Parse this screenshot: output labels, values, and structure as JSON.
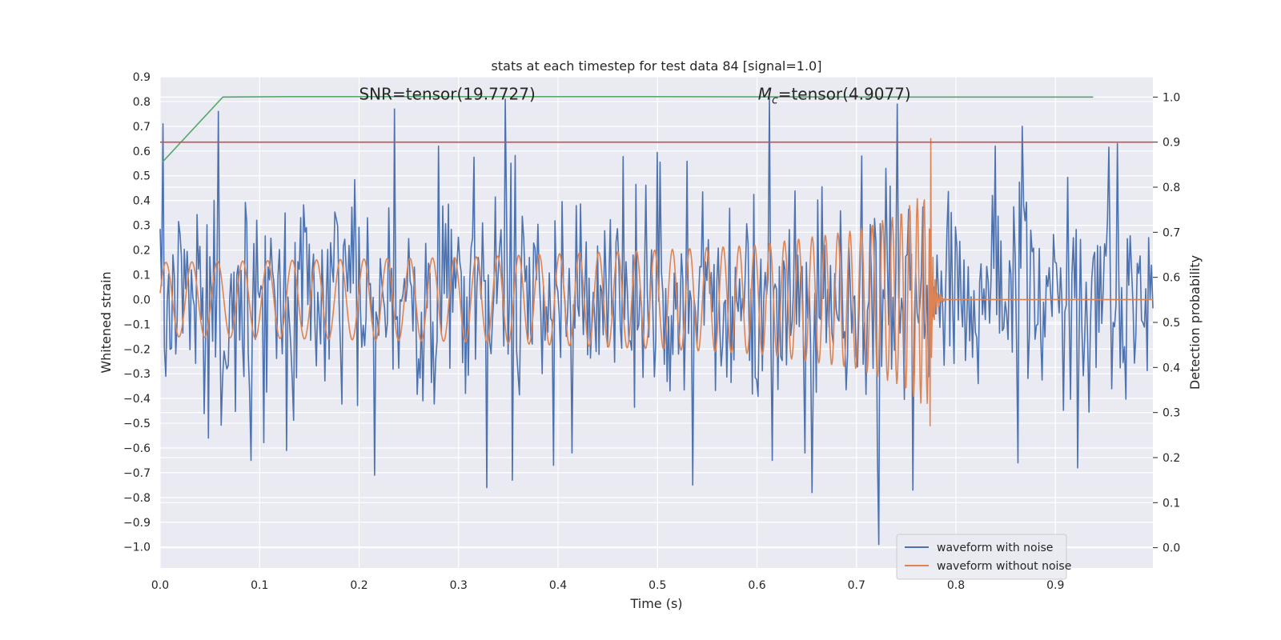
{
  "chart_data": {
    "type": "line",
    "title": "stats at each timestep for test data 84 [signal=1.0]",
    "xlabel": "Time (s)",
    "ylabel": "Whitened strain",
    "ylabel_right": "Detection probability",
    "xlim": [
      0.0,
      0.998
    ],
    "ylim": [
      -1.085,
      0.9
    ],
    "ylim_right": [
      -0.045,
      1.045
    ],
    "x_ticks": [
      0.0,
      0.1,
      0.2,
      0.3,
      0.4,
      0.5,
      0.6,
      0.7,
      0.8,
      0.9
    ],
    "x_tick_labels": [
      "0.0",
      "0.1",
      "0.2",
      "0.3",
      "0.4",
      "0.5",
      "0.6",
      "0.7",
      "0.8",
      "0.9"
    ],
    "y_ticks": [
      0.9,
      0.8,
      0.7,
      0.6,
      0.5,
      0.4,
      0.3,
      0.2,
      0.1,
      0.0,
      -0.1,
      -0.2,
      -0.3,
      -0.4,
      -0.5,
      -0.6,
      -0.7,
      -0.8,
      -0.9,
      -1.0
    ],
    "y_tick_labels": [
      "0.9",
      "0.8",
      "0.7",
      "0.6",
      "0.5",
      "0.4",
      "0.3",
      "0.2",
      "0.1",
      "0.0",
      "−0.1",
      "−0.2",
      "−0.3",
      "−0.4",
      "−0.5",
      "−0.6",
      "−0.7",
      "−0.8",
      "−0.9",
      "−1.0"
    ],
    "y2_ticks": [
      1.0,
      0.9,
      0.8,
      0.7,
      0.6,
      0.5,
      0.4,
      0.3,
      0.2,
      0.1,
      0.0
    ],
    "y2_tick_labels": [
      "1.0",
      "0.9",
      "0.8",
      "0.7",
      "0.6",
      "0.5",
      "0.4",
      "0.3",
      "0.2",
      "0.1",
      "0.0"
    ],
    "annotations": [
      {
        "text": "SNR=tensor(19.7727)",
        "x": 0.2,
        "y": 0.83
      },
      {
        "text_prefix": "M",
        "text_sub": "c",
        "text_suffix": "=tensor(4.9077)",
        "x": 0.601,
        "y": 0.83
      }
    ],
    "legend_position": "bottom-right",
    "series": [
      {
        "name": "waveform with noise",
        "color": "#4c72b0",
        "axis": "left",
        "generator": "noise",
        "n_points": 700,
        "noise_std": 0.22,
        "peaks": [
          [
            0.003,
            0.71
          ],
          [
            0.015,
            -0.22
          ],
          [
            0.049,
            -0.56
          ],
          [
            0.059,
            0.76
          ],
          [
            0.092,
            -0.65
          ],
          [
            0.126,
            0.35
          ],
          [
            0.127,
            -0.61
          ],
          [
            0.215,
            -0.71
          ],
          [
            0.236,
            0.77
          ],
          [
            0.329,
            -0.76
          ],
          [
            0.347,
            0.81
          ],
          [
            0.354,
            -0.73
          ],
          [
            0.395,
            -0.67
          ],
          [
            0.536,
            -0.75
          ],
          [
            0.612,
            0.82
          ],
          [
            0.615,
            -0.65
          ],
          [
            0.655,
            -0.78
          ],
          [
            0.706,
            0.58
          ],
          [
            0.722,
            -0.99
          ],
          [
            0.729,
            0.53
          ],
          [
            0.741,
            0.79
          ],
          [
            0.757,
            -0.77
          ],
          [
            0.862,
            -0.66
          ],
          [
            0.866,
            0.7
          ],
          [
            0.922,
            -0.68
          ],
          [
            0.962,
            0.63
          ]
        ]
      },
      {
        "name": "waveform without noise",
        "color": "#dd8452",
        "axis": "left",
        "generator": "chirp",
        "n_points": 1400,
        "t_merger": 0.775,
        "ringdown_end": 0.79,
        "peak_max": 0.65,
        "peak_min": -0.51,
        "amplitude_envelope": [
          [
            0.0,
            0.15
          ],
          [
            0.3,
            0.17
          ],
          [
            0.5,
            0.2
          ],
          [
            0.6,
            0.22
          ],
          [
            0.7,
            0.28
          ],
          [
            0.74,
            0.34
          ],
          [
            0.765,
            0.42
          ]
        ]
      },
      {
        "name": "detection probability",
        "color": "#55a868",
        "axis": "right",
        "x": [
          0.002,
          0.063,
          0.125,
          0.25,
          0.5,
          0.75,
          0.938
        ],
        "y": [
          0.855,
          1.0,
          1.001,
          1.001,
          1.001,
          1.0,
          1.0
        ]
      },
      {
        "name": "threshold",
        "color": "#c44e52",
        "axis": "right",
        "x": [
          0.0,
          0.998
        ],
        "y": [
          0.9,
          0.9
        ]
      }
    ],
    "legend_entries": [
      "waveform with noise",
      "waveform without noise"
    ]
  }
}
